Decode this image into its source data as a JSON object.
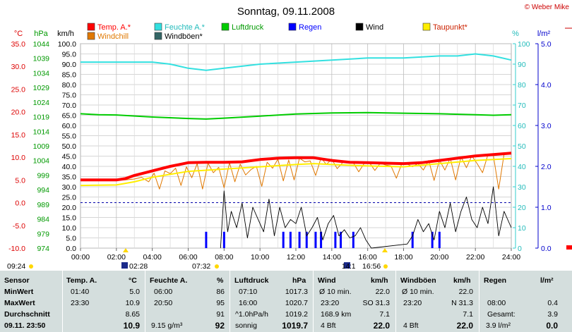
{
  "title": "Sonntag, 09.11.2008",
  "copyright": "© Weber Mike",
  "legend": [
    {
      "label": "Temp. A.*",
      "color": "#ff0000"
    },
    {
      "label": "Feuchte A.*",
      "color": "#33e0e0"
    },
    {
      "label": "Luftdruck",
      "color": "#00cc00"
    },
    {
      "label": "Regen",
      "color": "#0000ff"
    },
    {
      "label": "Wind",
      "color": "#000000"
    },
    {
      "label": "Taupunkt*",
      "color": "#ffee00"
    },
    {
      "label": "Windchill",
      "color": "#e07800"
    },
    {
      "label": "Windböen*",
      "color": "#336666"
    }
  ],
  "axis_headers": {
    "temp": "°C",
    "pressure": "hPa",
    "wind": "km/h",
    "humidity": "%",
    "rain": "l/m²"
  },
  "chart_data": {
    "type": "line",
    "title": "Sonntag, 09.11.2008",
    "x_ticks": [
      "00:00",
      "02:00",
      "04:00",
      "06:00",
      "08:00",
      "10:00",
      "12:00",
      "14:00",
      "16:00",
      "18:00",
      "20:00",
      "22:00",
      "24:00"
    ],
    "axes": {
      "temp_c": {
        "ticks": [
          "35.0",
          "30.0",
          "25.0",
          "20.0",
          "15.0",
          "10.0",
          "5.0",
          "0.0",
          "-5.0",
          "-10.0"
        ],
        "range": [
          -10,
          35
        ]
      },
      "pressure_hpa": {
        "ticks": [
          "1044",
          "1039",
          "1034",
          "1029",
          "1024",
          "1019",
          "1014",
          "1009",
          "1004",
          "999",
          "994",
          "989",
          "984",
          "979",
          "974"
        ],
        "range": [
          974,
          1044
        ]
      },
      "wind_kmh": {
        "ticks": [
          "100.0",
          "95.0",
          "90.0",
          "85.0",
          "80.0",
          "75.0",
          "70.0",
          "65.0",
          "60.0",
          "55.0",
          "50.0",
          "45.0",
          "40.0",
          "35.0",
          "30.0",
          "25.0",
          "20.0",
          "15.0",
          "10.0",
          "5.0",
          "0.0"
        ],
        "range": [
          0,
          100
        ]
      },
      "humidity_pct": {
        "ticks": [
          "100",
          "90",
          "80",
          "70",
          "60",
          "50",
          "40",
          "30",
          "20",
          "10",
          "0"
        ],
        "range": [
          0,
          100
        ]
      },
      "rain_lm2": {
        "ticks": [
          "5.0",
          "4.0",
          "3.0",
          "2.0",
          "1.0",
          "0.0"
        ],
        "range": [
          0,
          5
        ]
      }
    },
    "series": [
      {
        "name": "Temp. A.*",
        "axis": "temp_c",
        "color": "#ff0000",
        "x": [
          0,
          1,
          2,
          2.5,
          3,
          4,
          5,
          5.5,
          6,
          7,
          8,
          9,
          10,
          11,
          12,
          13,
          14,
          15,
          16,
          17,
          18,
          19,
          20,
          21,
          22,
          23,
          24
        ],
        "y": [
          5.0,
          5.0,
          5.0,
          5.3,
          6.0,
          7.0,
          8.0,
          8.4,
          8.8,
          8.9,
          8.9,
          9.0,
          9.5,
          9.8,
          9.9,
          9.9,
          9.3,
          8.9,
          8.8,
          8.7,
          8.6,
          8.8,
          9.3,
          9.8,
          10.3,
          10.6,
          10.9
        ]
      },
      {
        "name": "Taupunkt*",
        "axis": "temp_c",
        "color": "#ffee00",
        "x": [
          0,
          2,
          3,
          4,
          6,
          8,
          10,
          12,
          13,
          14,
          16,
          18,
          20,
          22,
          24
        ],
        "y": [
          3.8,
          3.9,
          4.6,
          5.6,
          6.9,
          7.4,
          7.9,
          8.4,
          8.6,
          8.4,
          8.1,
          7.9,
          8.6,
          9.3,
          9.7
        ]
      },
      {
        "name": "Feuchte A.*",
        "axis": "humidity_pct",
        "color": "#33e0e0",
        "x": [
          0,
          2,
          4,
          5,
          6,
          7,
          8,
          10,
          12,
          14,
          16,
          18,
          20,
          21,
          22,
          23,
          24
        ],
        "y": [
          91,
          91,
          91,
          90,
          88,
          87,
          88,
          90,
          91,
          92,
          93,
          93,
          94,
          94,
          95,
          94,
          92
        ]
      },
      {
        "name": "Luftdruck",
        "axis": "pressure_hpa",
        "color": "#00cc00",
        "x": [
          0,
          1,
          2,
          4,
          6,
          7,
          8,
          10,
          12,
          14,
          16,
          18,
          20,
          22,
          23,
          24
        ],
        "y": [
          1020.0,
          1019.7,
          1019.6,
          1018.9,
          1018.4,
          1018.2,
          1018.5,
          1019.2,
          1019.9,
          1020.3,
          1020.4,
          1020.2,
          1020.0,
          1019.7,
          1019.5,
          1019.7
        ]
      }
    ],
    "windchill_sample": {
      "name": "Windchill",
      "axis": "temp_c",
      "color": "#e07800",
      "x": [
        2.0,
        2.5,
        3.0,
        3.4,
        3.8,
        4.1,
        4.4,
        4.7,
        5.0,
        5.3,
        5.6,
        5.9,
        6.2,
        6.5,
        6.8,
        7.1,
        7.4,
        7.7,
        8.0,
        8.3,
        8.6,
        8.9,
        9.2,
        9.5,
        9.8,
        10.1,
        10.4,
        10.7,
        11.0,
        11.3,
        11.6,
        11.9,
        12.2,
        12.5,
        12.8,
        13.1,
        13.4,
        13.7,
        14.0,
        14.3,
        14.6,
        14.9,
        15.2,
        15.5,
        15.8,
        16.1,
        16.4,
        16.7,
        17.0,
        17.3,
        17.6,
        17.9,
        18.2,
        18.5,
        18.8,
        19.1,
        19.4,
        19.7,
        20.0,
        20.3,
        20.6,
        20.9,
        21.2,
        21.5,
        21.8,
        22.1,
        22.4,
        22.7,
        23.0,
        23.3,
        23.6,
        24.0
      ],
      "y": [
        5.0,
        5.0,
        5.2,
        5.6,
        4.6,
        6.5,
        3.0,
        7.0,
        6.4,
        7.6,
        3.8,
        7.9,
        5.5,
        8.6,
        3.0,
        8.7,
        6.6,
        7.8,
        3.3,
        8.8,
        4.6,
        8.5,
        6.1,
        7.3,
        8.0,
        3.6,
        8.9,
        7.6,
        9.6,
        4.8,
        9.4,
        5.0,
        9.8,
        9.0,
        9.2,
        6.0,
        9.9,
        8.4,
        9.6,
        7.5,
        8.8,
        9.1,
        8.8,
        6.8,
        8.6,
        8.8,
        7.1,
        8.7,
        8.3,
        8.1,
        5.4,
        8.6,
        8.5,
        7.9,
        8.6,
        7.2,
        9.3,
        4.9,
        9.4,
        7.2,
        9.8,
        5.0,
        10.1,
        7.7,
        10.3,
        8.6,
        6.6,
        10.6,
        10.4,
        3.0,
        10.7,
        10.8
      ]
    },
    "wind_sample": {
      "name": "Wind",
      "axis": "wind_kmh",
      "color": "#000000",
      "x": [
        7.8,
        8.0,
        8.2,
        8.4,
        8.7,
        9.0,
        9.3,
        9.6,
        9.9,
        10.2,
        10.5,
        10.8,
        11.1,
        11.4,
        11.7,
        12.0,
        12.3,
        12.6,
        12.9,
        13.2,
        13.5,
        13.8,
        14.1,
        14.4,
        14.7,
        15.0,
        15.3,
        15.6,
        15.9,
        16.2,
        18.2,
        18.5,
        18.8,
        19.1,
        19.4,
        19.7,
        20.0,
        20.3,
        20.6,
        20.9,
        21.2,
        21.5,
        21.8,
        22.1,
        22.4,
        22.7,
        23.0,
        23.3,
        23.6,
        24.0
      ],
      "y": [
        0,
        28,
        8,
        18,
        10,
        22,
        5,
        20,
        14,
        8,
        24,
        6,
        20,
        10,
        14,
        12,
        20,
        6,
        10,
        15,
        4,
        12,
        16,
        6,
        9,
        5,
        6,
        10,
        4,
        0,
        2,
        6,
        14,
        8,
        12,
        4,
        18,
        10,
        22,
        8,
        18,
        25,
        14,
        10,
        20,
        12,
        30,
        6,
        18,
        10
      ]
    },
    "rain_lm2_marks": {
      "x": [
        7.0,
        8.0,
        11.3,
        11.7,
        12.2,
        12.6,
        13.1,
        13.4,
        14.2,
        14.5,
        15.2,
        18.5,
        19.6,
        20.0
      ],
      "y": [
        0.4,
        0.4,
        0.4,
        0.4,
        0.4,
        0.4,
        0.4,
        0.4,
        0.4,
        0.4,
        0.4,
        0.4,
        0.4,
        0.4
      ]
    }
  },
  "below_axis": {
    "left_time": "09:24",
    "sunrise_time": "02:28",
    "sunrise2_time": "07:32",
    "sunset_time": "16:56",
    "moon_time": "14:1"
  },
  "table": {
    "headers": [
      "Sensor",
      "Temp. A.",
      "°C",
      "Feuchte A.",
      "%",
      "Luftdruck",
      "hPa",
      "Wind",
      "km/h",
      "Windböen",
      "km/h",
      "Regen",
      "l/m²"
    ],
    "rows": [
      {
        "label": "MinWert",
        "c1": "01:40",
        "c2": "5.0",
        "c3": "06:00",
        "c4": "86",
        "c5": "07:10",
        "c6": "1017.3",
        "c7": "Ø 10 min.",
        "c8": "22.0",
        "c9": "Ø 10 min.",
        "c10": "22.0",
        "c11": "",
        "c12": ""
      },
      {
        "label": "MaxWert",
        "c1": "23:30",
        "c2": "10.9",
        "c3": "20:50",
        "c4": "95",
        "c5": "16:00",
        "c6": "1020.7",
        "c7": "23:20",
        "c7b": "SO 31.3",
        "c8": "",
        "c9": "23:20",
        "c9b": "N 31.3",
        "c10": "",
        "c11": "08:00",
        "c12": "0.4"
      },
      {
        "label": "Durchschnitt",
        "c1": "",
        "c2": "8.65",
        "c3": "",
        "c4": "91",
        "c5": "^1.0hPa/h",
        "c6": "1019.2",
        "c7": "168.9 km",
        "c8": "7.1",
        "c9": "",
        "c10": "7.1",
        "c11": "Gesamt:",
        "c12": "3.9"
      },
      {
        "label": "09.11. 23:50",
        "c1": "",
        "c2": "10.9",
        "c3": "9.15 g/m³",
        "c4": "92",
        "c5": "sonnig",
        "c6": "1019.7",
        "c7": "4 Bft",
        "c8": "22.0",
        "c9": "4 Bft",
        "c10": "22.0",
        "c11": "3.9 l/m²",
        "c12": "0.0"
      }
    ]
  }
}
